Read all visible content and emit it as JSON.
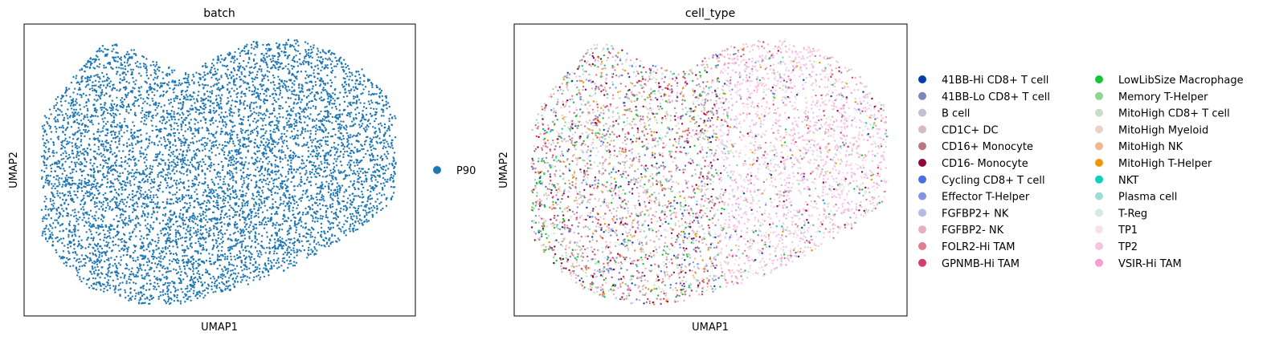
{
  "chart_data": [
    {
      "type": "scatter",
      "title": "batch",
      "xlabel": "UMAP1",
      "ylabel": "UMAP2",
      "xticks": [],
      "yticks": [],
      "grid": false,
      "legend_placement": "right",
      "color_key": "batch",
      "series": [
        {
          "name": "P90",
          "color": "#1f77b4",
          "approx_points": 7000
        }
      ]
    },
    {
      "type": "scatter",
      "title": "cell_type",
      "xlabel": "UMAP1",
      "ylabel": "UMAP2",
      "xticks": [],
      "yticks": [],
      "grid": false,
      "legend_placement": "right",
      "legend_columns": 2,
      "color_key": "cell_type",
      "series": [
        {
          "name": "41BB-Hi CD8+ T cell",
          "color": "#023fa5"
        },
        {
          "name": "41BB-Lo CD8+ T cell",
          "color": "#7d87b9"
        },
        {
          "name": "B cell",
          "color": "#bec1d4"
        },
        {
          "name": "CD1C+ DC",
          "color": "#d6bcc0"
        },
        {
          "name": "CD16+ Monocyte",
          "color": "#bb7784"
        },
        {
          "name": "CD16- Monocyte",
          "color": "#8e063b"
        },
        {
          "name": "Cycling CD8+ T cell",
          "color": "#4a6fe3"
        },
        {
          "name": "Effector T-Helper",
          "color": "#8595e1"
        },
        {
          "name": "FGFBP2+ NK",
          "color": "#b5bbe3"
        },
        {
          "name": "FGFBP2- NK",
          "color": "#e6afb9"
        },
        {
          "name": "FOLR2-Hi TAM",
          "color": "#e07b91"
        },
        {
          "name": "GPNMB-Hi TAM",
          "color": "#d33f6a"
        },
        {
          "name": "LowLibSize Macrophage",
          "color": "#11c638"
        },
        {
          "name": "Memory T-Helper",
          "color": "#8dd593"
        },
        {
          "name": "MitoHigh CD8+ T cell",
          "color": "#c6dec7"
        },
        {
          "name": "MitoHigh Myeloid",
          "color": "#ead3c6"
        },
        {
          "name": "MitoHigh NK",
          "color": "#f0b98d"
        },
        {
          "name": "MitoHigh T-Helper",
          "color": "#ef9708"
        },
        {
          "name": "NKT",
          "color": "#0fcfc0"
        },
        {
          "name": "Plasma cell",
          "color": "#9cded6"
        },
        {
          "name": "T-Reg",
          "color": "#d5eae7"
        },
        {
          "name": "TP1",
          "color": "#f3e1eb"
        },
        {
          "name": "TP2",
          "color": "#f6c4e1"
        },
        {
          "name": "VSIR-Hi TAM",
          "color": "#f79cd4"
        }
      ]
    }
  ]
}
